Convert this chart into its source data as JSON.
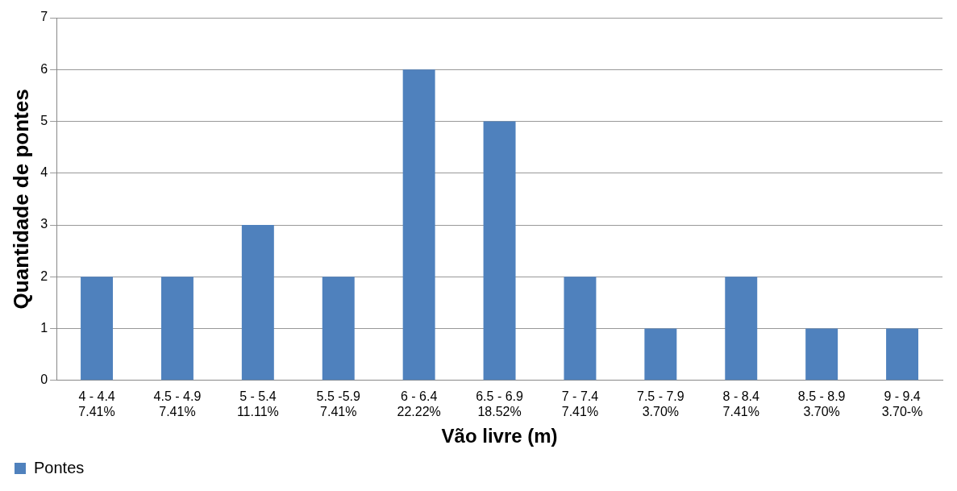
{
  "chart_data": {
    "type": "bar",
    "xlabel": "Vão livre (m)",
    "ylabel": "Quantidade de pontes",
    "categories": [
      "4 - 4.4\n7.41%",
      "4.5 - 4.9\n7.41%",
      "5 - 5.4\n11.11%",
      "5.5 -5.9\n7.41%",
      "6 - 6.4\n22.22%",
      "6.5 - 6.9\n18.52%",
      "7 - 7.4\n7.41%",
      "7.5 - 7.9\n3.70%",
      "8 - 8.4\n7.41%",
      "8.5 - 8.9\n3.70%",
      "9 - 9.4\n3.70-%"
    ],
    "series": [
      {
        "name": "Pontes",
        "color": "#4f81bd",
        "values": [
          2,
          2,
          3,
          2,
          6,
          5,
          2,
          1,
          2,
          1,
          1
        ]
      }
    ],
    "ylim": [
      0,
      7
    ],
    "yticks": [
      0,
      1,
      2,
      3,
      4,
      5,
      6,
      7
    ],
    "grid": "y",
    "legend": "bottom left"
  }
}
